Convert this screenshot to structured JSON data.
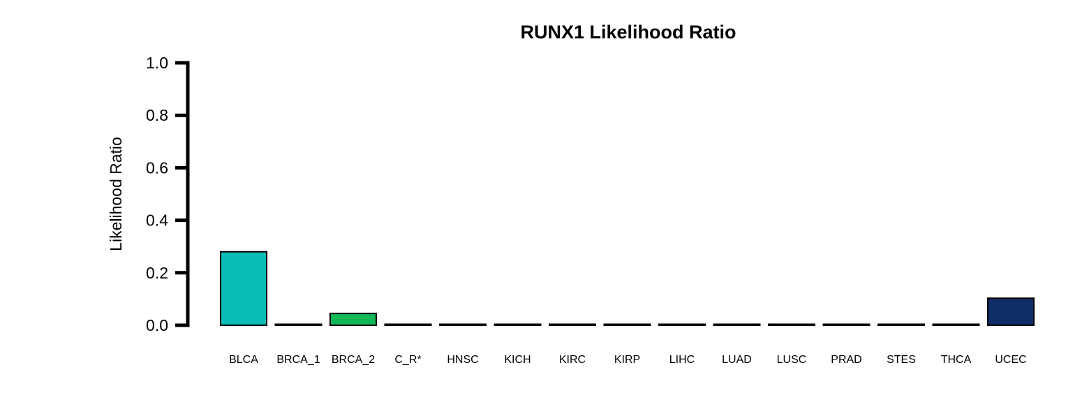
{
  "chart_data": {
    "type": "bar",
    "title": "RUNX1 Likelihood Ratio",
    "xlabel": "",
    "ylabel": "Likelihood Ratio",
    "ylim": [
      0,
      1
    ],
    "yticks": [
      "0.0",
      "0.2",
      "0.4",
      "0.6",
      "0.8",
      "1.0"
    ],
    "ytick_values": [
      0,
      0.2,
      0.4,
      0.6,
      0.8,
      1.0
    ],
    "categories": [
      "BLCA",
      "BRCA_1",
      "BRCA_2",
      "C_R*",
      "HNSC",
      "KICH",
      "KIRC",
      "KIRP",
      "LIHC",
      "LUAD",
      "LUSC",
      "PRAD",
      "STES",
      "THCA",
      "UCEC"
    ],
    "values": [
      0.28,
      0.003,
      0.045,
      0.003,
      0.0,
      0.0,
      0.0,
      0.0,
      0.0,
      0.0,
      0.0,
      0.0,
      0.0,
      0.0,
      0.103
    ],
    "colors": [
      "#08BDB5",
      "#FFFFFF",
      "#10B857",
      "#FFFFFF",
      "#FFFFFF",
      "#FFFFFF",
      "#FFFFFF",
      "#FFFFFF",
      "#FFFFFF",
      "#FFFFFF",
      "#FFFFFF",
      "#FFFFFF",
      "#FFFFFF",
      "#FFFFFF",
      "#0E2C66"
    ],
    "grid": false,
    "legend": "none"
  }
}
